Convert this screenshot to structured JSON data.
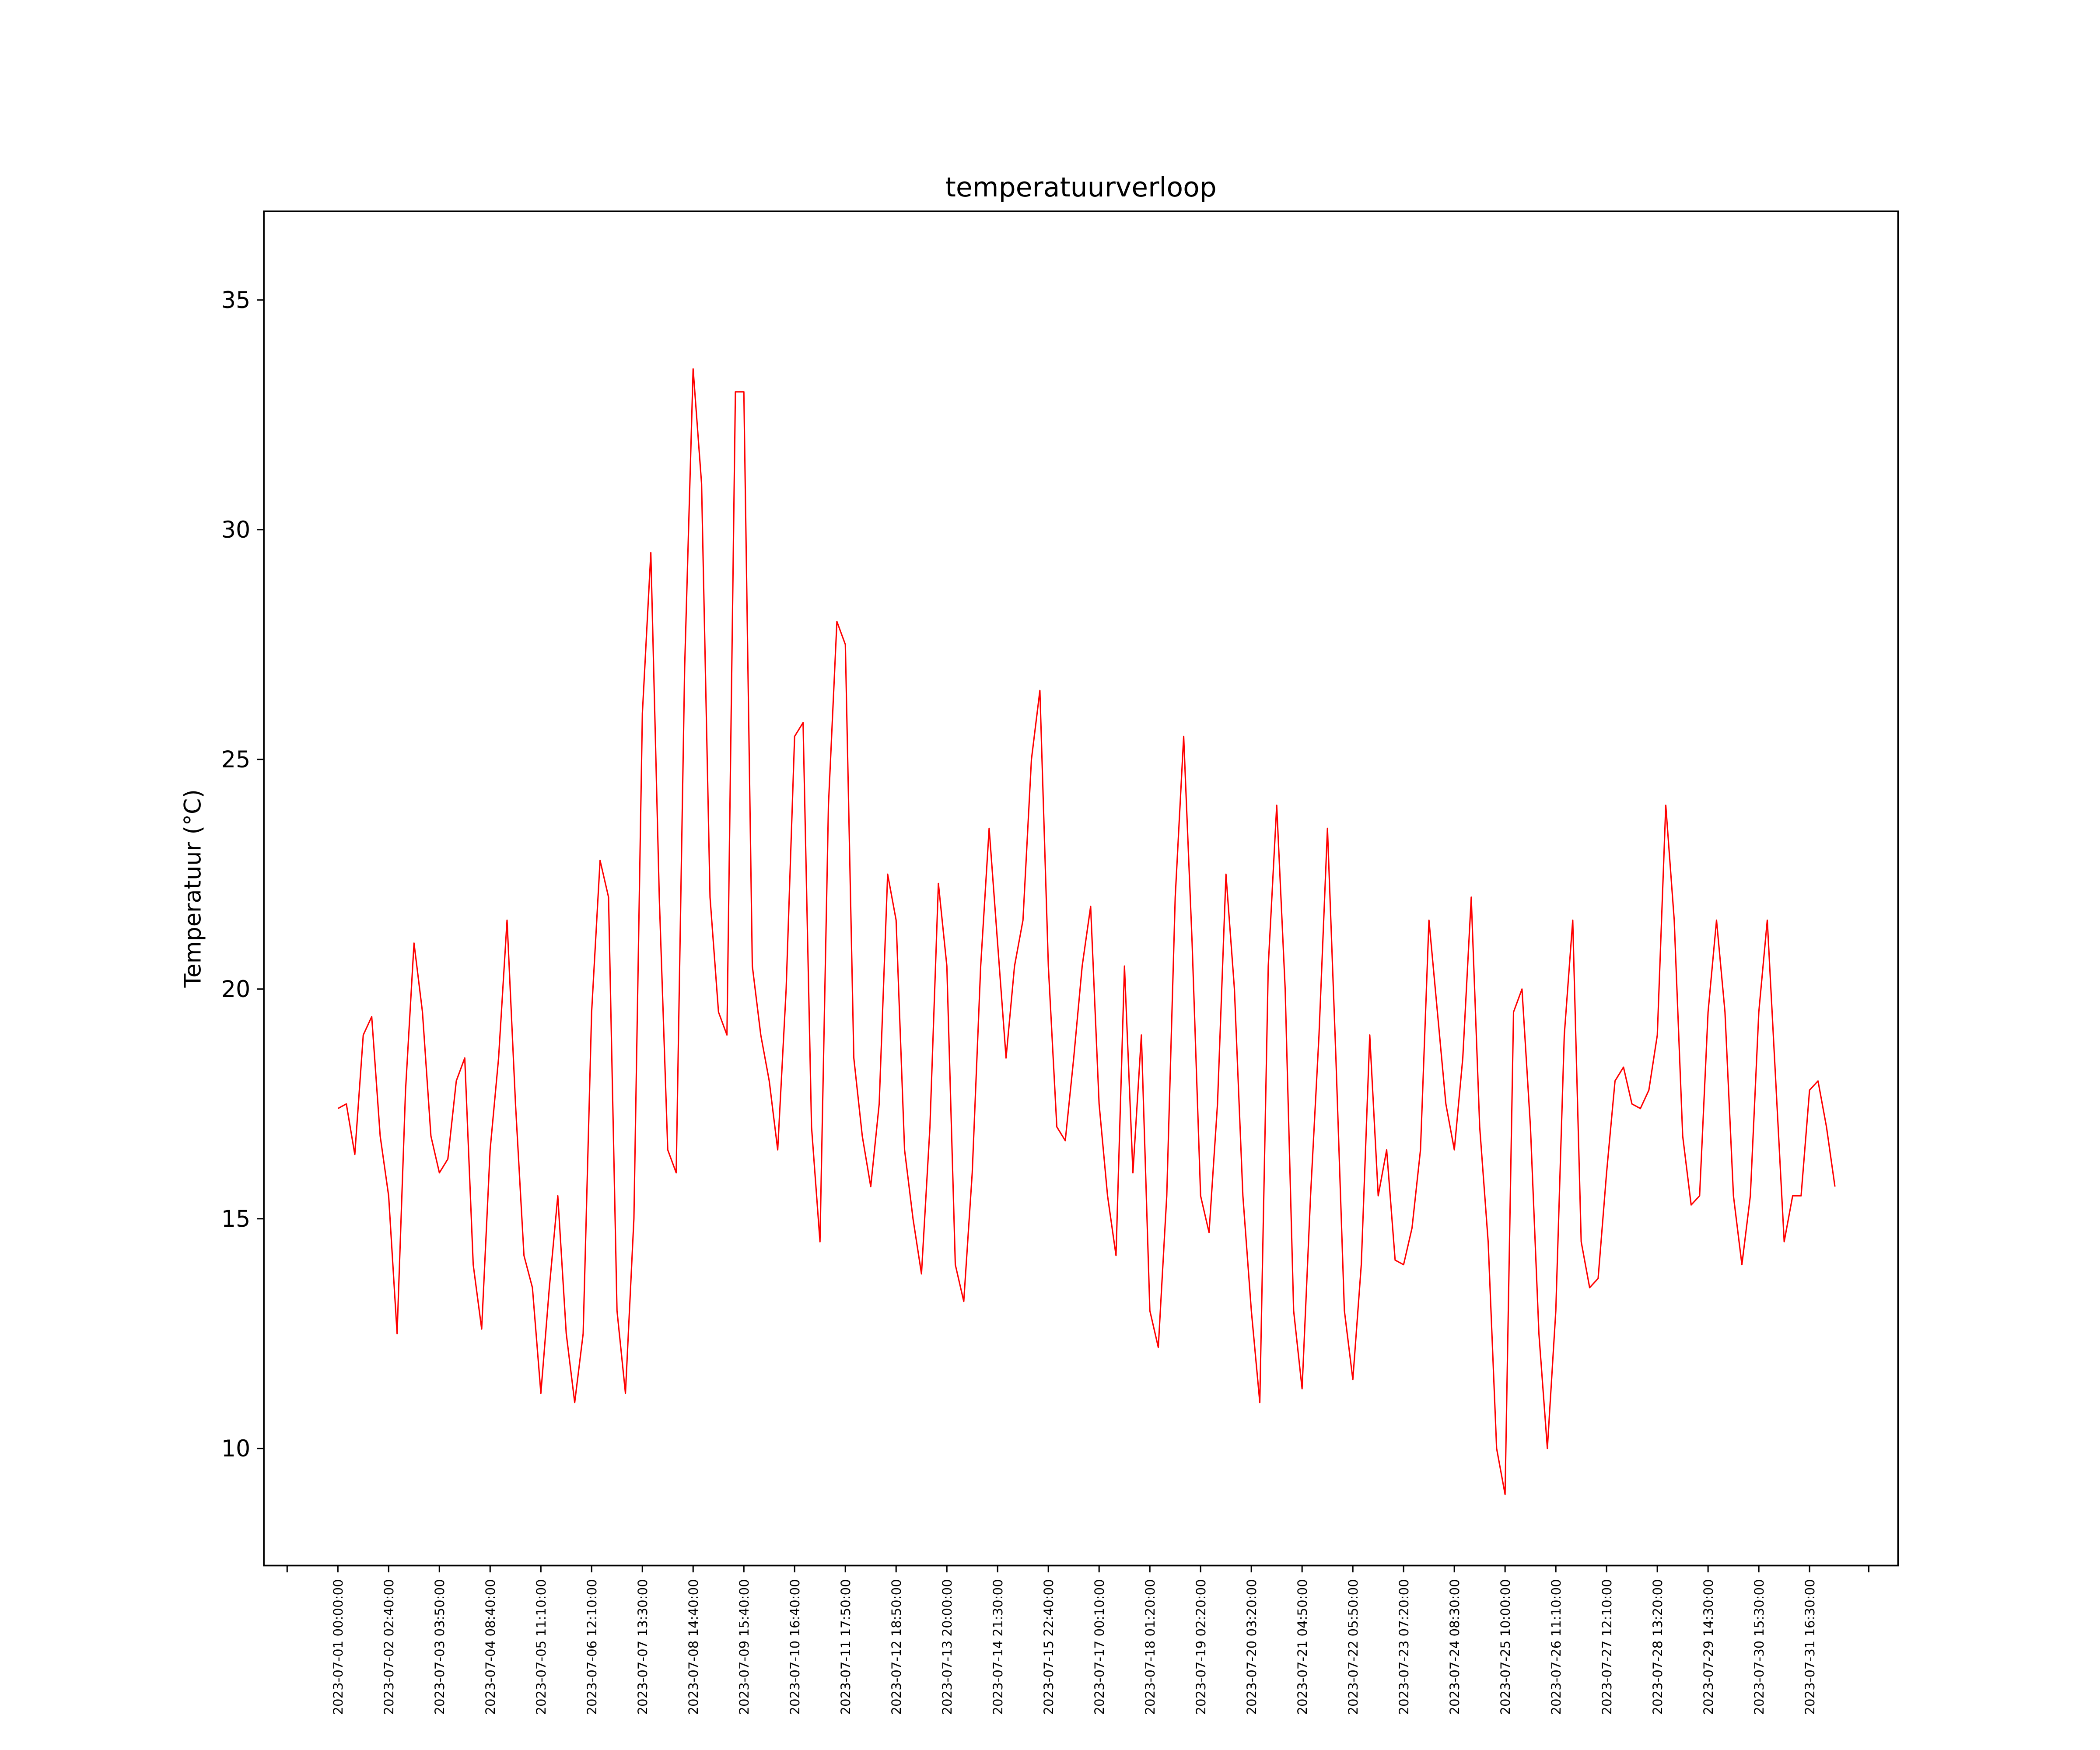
{
  "chart_data": {
    "type": "line",
    "title": "temperatuurverloop",
    "ylabel": "Temperatuur (°C)",
    "color": "#ff0000",
    "grid": false,
    "ylim": [
      7.45,
      36.93
    ],
    "yticks": [
      10,
      15,
      20,
      25,
      30,
      35
    ],
    "categories": [
      "2023-07-01 00:00:00",
      null,
      null,
      null,
      null,
      null,
      "2023-07-02 02:40:00",
      null,
      null,
      null,
      null,
      null,
      "2023-07-03 03:50:00",
      null,
      null,
      null,
      null,
      null,
      "2023-07-04 08:40:00",
      null,
      null,
      null,
      null,
      null,
      "2023-07-05 11:10:00",
      null,
      null,
      null,
      null,
      null,
      "2023-07-06 12:10:00",
      null,
      null,
      null,
      null,
      null,
      "2023-07-07 13:30:00",
      null,
      null,
      null,
      null,
      null,
      "2023-07-08 14:40:00",
      null,
      null,
      null,
      null,
      null,
      "2023-07-09 15:40:00",
      null,
      null,
      null,
      null,
      null,
      "2023-07-10 16:40:00",
      null,
      null,
      null,
      null,
      null,
      "2023-07-11 17:50:00",
      null,
      null,
      null,
      null,
      null,
      "2023-07-12 18:50:00",
      null,
      null,
      null,
      null,
      null,
      "2023-07-13 20:00:00",
      null,
      null,
      null,
      null,
      null,
      "2023-07-14 21:30:00",
      null,
      null,
      null,
      null,
      null,
      "2023-07-15 22:40:00",
      null,
      null,
      null,
      null,
      null,
      "2023-07-17 00:10:00",
      null,
      null,
      null,
      null,
      null,
      "2023-07-18 01:20:00",
      null,
      null,
      null,
      null,
      null,
      "2023-07-19 02:20:00",
      null,
      null,
      null,
      null,
      null,
      "2023-07-20 03:20:00",
      null,
      null,
      null,
      null,
      null,
      "2023-07-21 04:50:00",
      null,
      null,
      null,
      null,
      null,
      "2023-07-22 05:50:00",
      null,
      null,
      null,
      null,
      null,
      "2023-07-23 07:20:00",
      null,
      null,
      null,
      null,
      null,
      "2023-07-24 08:30:00",
      null,
      null,
      null,
      null,
      null,
      "2023-07-25 10:00:00",
      null,
      null,
      null,
      null,
      null,
      "2023-07-26 11:10:00",
      null,
      null,
      null,
      null,
      null,
      "2023-07-27 12:10:00",
      null,
      null,
      null,
      null,
      null,
      "2023-07-28 13:20:00",
      null,
      null,
      null,
      null,
      null,
      "2023-07-29 14:30:00",
      null,
      null,
      null,
      null,
      null,
      "2023-07-30 15:30:00",
      null,
      null,
      null,
      null,
      null,
      "2023-07-31 16:30:00",
      null,
      null,
      null
    ],
    "values": [
      17.4,
      17.5,
      16.4,
      19.0,
      19.4,
      16.8,
      15.5,
      12.5,
      17.8,
      21.0,
      19.5,
      16.8,
      16.0,
      16.3,
      18.0,
      18.5,
      14.0,
      12.6,
      16.5,
      18.5,
      21.5,
      17.5,
      14.2,
      13.5,
      11.2,
      13.5,
      15.5,
      12.5,
      11.0,
      12.5,
      19.5,
      22.8,
      22.0,
      13.0,
      11.2,
      15.0,
      26.0,
      29.5,
      22.0,
      16.5,
      16.0,
      27.0,
      33.5,
      31.0,
      22.0,
      19.5,
      19.0,
      33.0,
      33.0,
      20.5,
      19.0,
      18.0,
      16.5,
      20.0,
      25.5,
      25.8,
      17.0,
      14.5,
      24.0,
      28.0,
      27.5,
      18.5,
      16.8,
      15.7,
      17.5,
      22.5,
      21.5,
      16.5,
      15.0,
      13.8,
      17.0,
      22.3,
      20.5,
      14.0,
      13.2,
      16.0,
      20.5,
      23.5,
      21.0,
      18.5,
      20.5,
      21.5,
      25.0,
      26.5,
      20.5,
      17.0,
      16.7,
      18.5,
      20.5,
      21.8,
      17.5,
      15.5,
      14.2,
      20.5,
      16.0,
      19.0,
      13.0,
      12.2,
      15.5,
      22.0,
      25.5,
      21.0,
      15.5,
      14.7,
      17.5,
      22.5,
      20.0,
      15.5,
      13.0,
      11.0,
      20.5,
      24.0,
      20.0,
      13.0,
      11.3,
      15.5,
      19.0,
      23.5,
      18.5,
      13.0,
      11.5,
      14.0,
      19.0,
      15.5,
      16.5,
      14.1,
      14.0,
      14.8,
      16.5,
      21.5,
      19.5,
      17.5,
      16.5,
      18.5,
      22.0,
      17.0,
      14.5,
      10.0,
      9.0,
      19.5,
      20.0,
      17.0,
      12.5,
      10.0,
      13.0,
      19.0,
      21.5,
      14.5,
      13.5,
      13.7,
      16.0,
      18.0,
      18.3,
      17.5,
      17.4,
      17.8,
      19.0,
      24.0,
      21.5,
      16.8,
      15.3,
      15.5,
      19.5,
      21.5,
      19.5,
      15.5,
      14.0,
      15.5,
      19.5,
      21.5,
      18.0,
      14.5,
      15.5,
      15.5,
      17.8,
      18.0,
      17.0,
      15.7
    ]
  }
}
